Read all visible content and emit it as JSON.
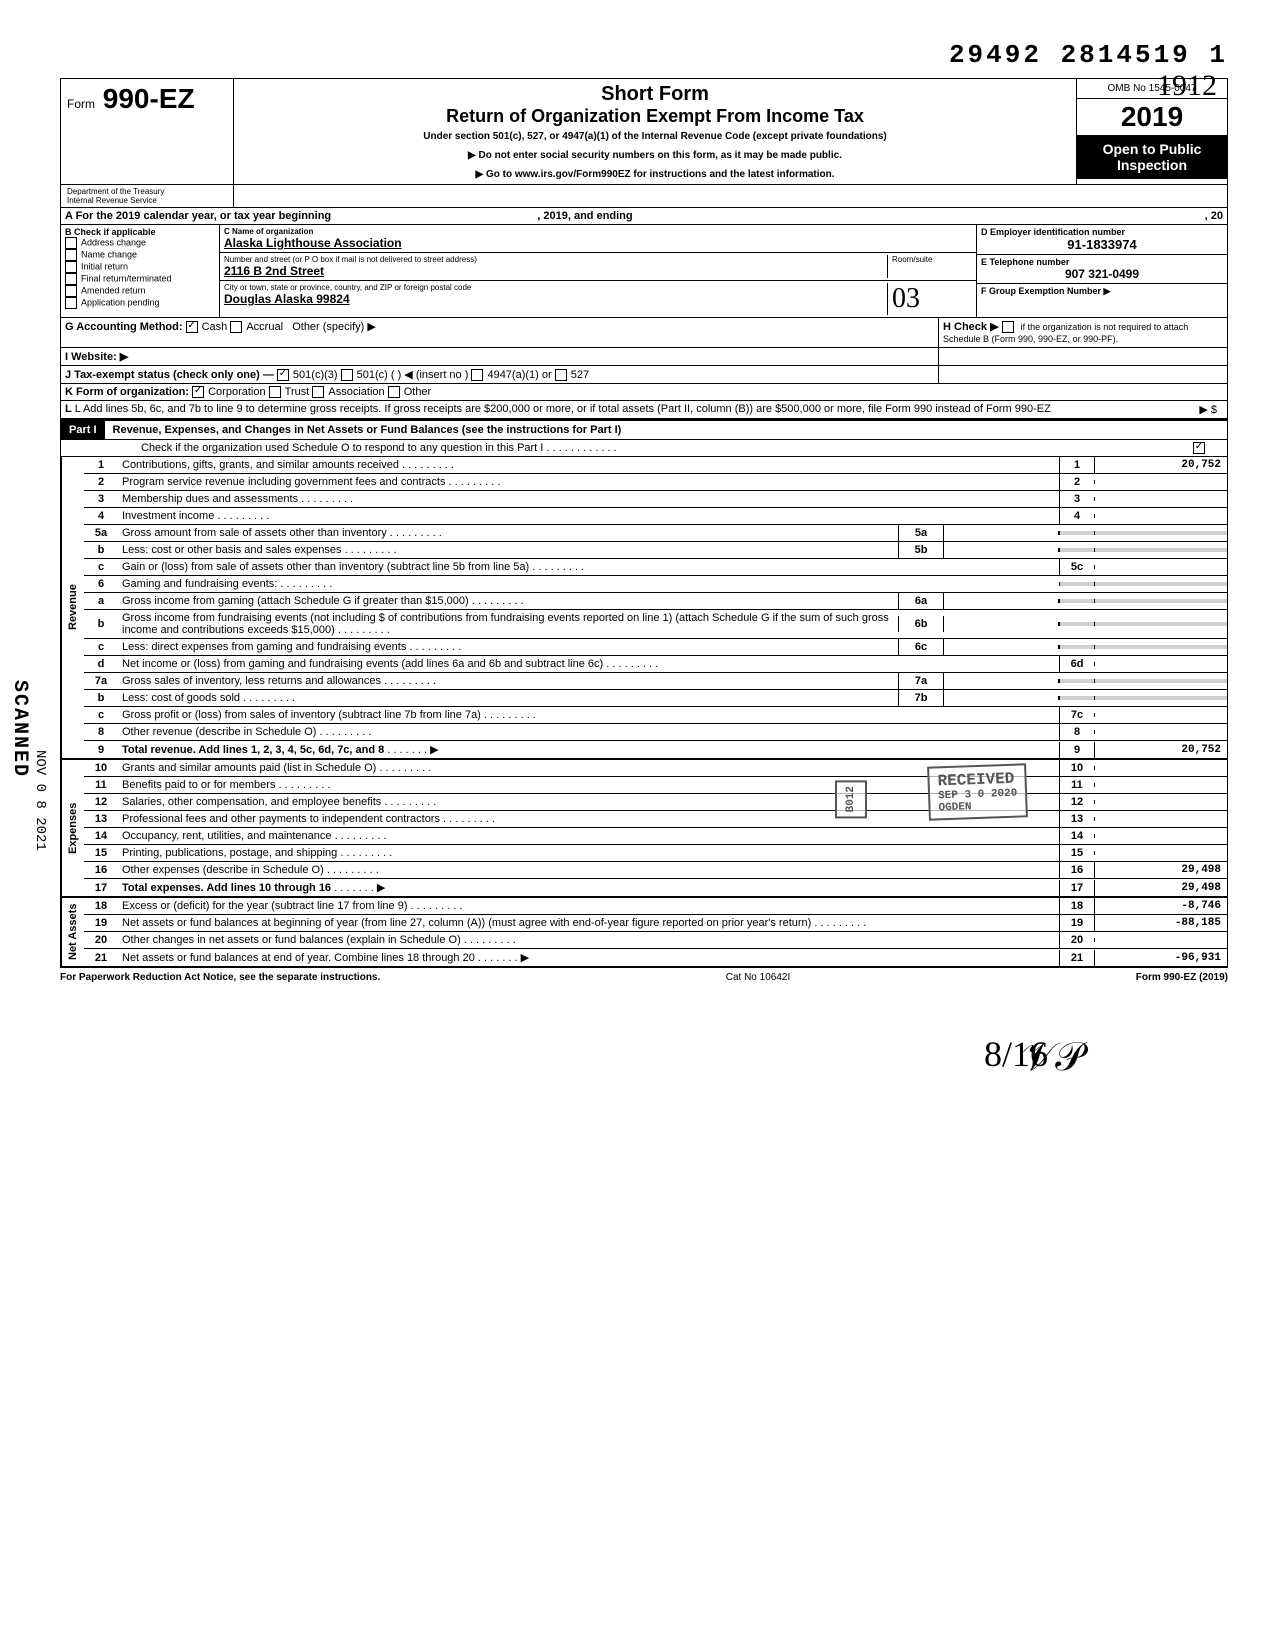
{
  "top_number": "29492 2814519 1",
  "form_number": "990-EZ",
  "form_prefix": "Form",
  "title1": "Short Form",
  "title2": "Return of Organization Exempt From Income Tax",
  "subtitle": "Under section 501(c), 527, or 4947(a)(1) of the Internal Revenue Code (except private foundations)",
  "note1": "▶ Do not enter social security numbers on this form, as it may be made public.",
  "note2": "▶ Go to www.irs.gov/Form990EZ for instructions and the latest information.",
  "omb": "OMB No 1545-0047",
  "year_display": "2019",
  "handwritten_year": "1912",
  "inspection": "Open to Public Inspection",
  "dept1": "Department of the Treasury",
  "dept2": "Internal Revenue Service",
  "line_a": "A For the 2019 calendar year, or tax year beginning",
  "line_a_mid": ", 2019, and ending",
  "line_a_end": ", 20",
  "section_b_title": "B Check if applicable",
  "b_checks": [
    {
      "label": "Address change",
      "checked": false
    },
    {
      "label": "Name change",
      "checked": false
    },
    {
      "label": "Initial return",
      "checked": false
    },
    {
      "label": "Final return/terminated",
      "checked": false
    },
    {
      "label": "Amended return",
      "checked": false
    },
    {
      "label": "Application pending",
      "checked": false
    }
  ],
  "c_label": "C Name of organization",
  "c_value": "Alaska Lighthouse Association",
  "c_addr_label": "Number and street (or P O box if mail is not delivered to street address)",
  "c_addr_value": "2116 B 2nd Street",
  "c_room_label": "Room/suite",
  "c_city_label": "City or town, state or province, country, and ZIP or foreign postal code",
  "c_city_value": "Douglas  Alaska  99824",
  "c_room_hand": "03",
  "d_label": "D Employer identification number",
  "d_value": "91-1833974",
  "e_label": "E Telephone number",
  "e_value": "907 321-0499",
  "f_label": "F Group Exemption Number ▶",
  "g_label": "G Accounting Method:",
  "g_cash": "Cash",
  "g_accrual": "Accrual",
  "g_other": "Other (specify) ▶",
  "h_label": "H Check ▶",
  "h_text": "if the organization is not required to attach Schedule B (Form 990, 990-EZ, or 990-PF).",
  "i_label": "I  Website: ▶",
  "j_label": "J Tax-exempt status (check only one) —",
  "j_501c3": "501(c)(3)",
  "j_501c": "501(c) (",
  "j_insert": ") ◀ (insert no )",
  "j_4947": "4947(a)(1) or",
  "j_527": "527",
  "k_label": "K Form of organization:",
  "k_corp": "Corporation",
  "k_trust": "Trust",
  "k_assoc": "Association",
  "k_other": "Other",
  "l_text": "L Add lines 5b, 6c, and 7b to line 9 to determine gross receipts. If gross receipts are $200,000 or more, or if total assets (Part II, column (B)) are $500,000 or more, file Form 990 instead of Form 990-EZ",
  "l_arrow": "▶  $",
  "part1_label": "Part I",
  "part1_title": "Revenue, Expenses, and Changes in Net Assets or Fund Balances (see the instructions for Part I)",
  "part1_check": "Check if the organization used Schedule O to respond to any question in this Part I",
  "sections": {
    "revenue_label": "Revenue",
    "expenses_label": "Expenses",
    "netassets_label": "Net Assets"
  },
  "lines": [
    {
      "n": "1",
      "text": "Contributions, gifts, grants, and similar amounts received",
      "rbox": "1",
      "rval": "20,752"
    },
    {
      "n": "2",
      "text": "Program service revenue including government fees and contracts",
      "rbox": "2",
      "rval": ""
    },
    {
      "n": "3",
      "text": "Membership dues and assessments",
      "rbox": "3",
      "rval": ""
    },
    {
      "n": "4",
      "text": "Investment income",
      "rbox": "4",
      "rval": ""
    },
    {
      "n": "5a",
      "text": "Gross amount from sale of assets other than inventory",
      "mbox": "5a"
    },
    {
      "n": "b",
      "text": "Less: cost or other basis and sales expenses",
      "mbox": "5b"
    },
    {
      "n": "c",
      "text": "Gain or (loss) from sale of assets other than inventory (subtract line 5b from line 5a)",
      "rbox": "5c",
      "rval": ""
    },
    {
      "n": "6",
      "text": "Gaming and fundraising events:"
    },
    {
      "n": "a",
      "text": "Gross income from gaming (attach Schedule G if greater than $15,000)",
      "mbox": "6a"
    },
    {
      "n": "b",
      "text": "Gross income from fundraising events (not including  $                of contributions from fundraising events reported on line 1) (attach Schedule G if the sum of such gross income and contributions exceeds $15,000)",
      "mbox": "6b"
    },
    {
      "n": "c",
      "text": "Less: direct expenses from gaming and fundraising events",
      "mbox": "6c"
    },
    {
      "n": "d",
      "text": "Net income or (loss) from gaming and fundraising events (add lines 6a and 6b and subtract line 6c)",
      "rbox": "6d",
      "rval": ""
    },
    {
      "n": "7a",
      "text": "Gross sales of inventory, less returns and allowances",
      "mbox": "7a"
    },
    {
      "n": "b",
      "text": "Less: cost of goods sold",
      "mbox": "7b"
    },
    {
      "n": "c",
      "text": "Gross profit or (loss) from sales of inventory (subtract line 7b from line 7a)",
      "rbox": "7c",
      "rval": ""
    },
    {
      "n": "8",
      "text": "Other revenue (describe in Schedule O)",
      "rbox": "8",
      "rval": ""
    },
    {
      "n": "9",
      "text": "Total revenue. Add lines 1, 2, 3, 4, 5c, 6d, 7c, and 8",
      "rbox": "9",
      "rval": "20,752",
      "bold": true,
      "arrow": true
    }
  ],
  "expense_lines": [
    {
      "n": "10",
      "text": "Grants and similar amounts paid (list in Schedule O)",
      "rbox": "10",
      "rval": ""
    },
    {
      "n": "11",
      "text": "Benefits paid to or for members",
      "rbox": "11",
      "rval": ""
    },
    {
      "n": "12",
      "text": "Salaries, other compensation, and employee benefits",
      "rbox": "12",
      "rval": ""
    },
    {
      "n": "13",
      "text": "Professional fees and other payments to independent contractors",
      "rbox": "13",
      "rval": ""
    },
    {
      "n": "14",
      "text": "Occupancy, rent, utilities, and maintenance",
      "rbox": "14",
      "rval": ""
    },
    {
      "n": "15",
      "text": "Printing, publications, postage, and shipping",
      "rbox": "15",
      "rval": ""
    },
    {
      "n": "16",
      "text": "Other expenses (describe in Schedule O)",
      "rbox": "16",
      "rval": "29,498"
    },
    {
      "n": "17",
      "text": "Total expenses. Add lines 10 through 16",
      "rbox": "17",
      "rval": "29,498",
      "bold": true,
      "arrow": true
    }
  ],
  "net_lines": [
    {
      "n": "18",
      "text": "Excess or (deficit) for the year (subtract line 17 from line 9)",
      "rbox": "18",
      "rval": "-8,746"
    },
    {
      "n": "19",
      "text": "Net assets or fund balances at beginning of year (from line 27, column (A)) (must agree with end-of-year figure reported on prior year's return)",
      "rbox": "19",
      "rval": "-88,185"
    },
    {
      "n": "20",
      "text": "Other changes in net assets or fund balances (explain in Schedule O)",
      "rbox": "20",
      "rval": ""
    },
    {
      "n": "21",
      "text": "Net assets or fund balances at end of year. Combine lines 18 through 20",
      "rbox": "21",
      "rval": "-96,931",
      "arrow": true
    }
  ],
  "footer_left": "For Paperwork Reduction Act Notice, see the separate instructions.",
  "footer_mid": "Cat No 10642I",
  "footer_right": "Form 990-EZ (2019)",
  "stamp_received": "RECEIVED",
  "stamp_date": "SEP 3 0 2020",
  "stamp_ogden": "OGDEN",
  "stamp_b012": "B012",
  "scanned_text": "SCANNED",
  "scan_date": "NOV 0 8 2021",
  "handwrite_bottom": "8/16",
  "colors": {
    "black": "#000000",
    "white": "#ffffff",
    "shade": "#d0d0d0"
  }
}
